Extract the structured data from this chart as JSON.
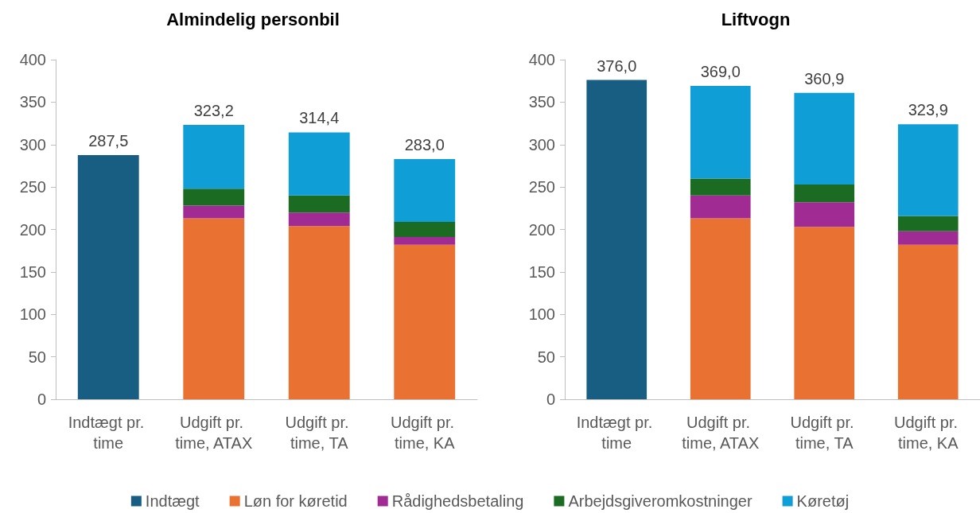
{
  "chart_data": [
    {
      "type": "bar",
      "title": "Almindelig personbil",
      "stacked": true,
      "categories": [
        "Indtægt pr. time",
        "Udgift pr. time, ATAX",
        "Udgift pr. time, TA",
        "Udgift pr. time, KA"
      ],
      "series": [
        {
          "name": "Indtægt",
          "color": "#175e82",
          "values": [
            287.5,
            null,
            null,
            null
          ]
        },
        {
          "name": "Løn for køretid",
          "color": "#e97132",
          "values": [
            null,
            213,
            204,
            182
          ]
        },
        {
          "name": "Rådighedsbetaling",
          "color": "#a02b93",
          "values": [
            null,
            15,
            16,
            9
          ]
        },
        {
          "name": "Arbejdsgiveromkostninger",
          "color": "#1b6b23",
          "values": [
            null,
            20,
            20,
            18
          ]
        },
        {
          "name": "Køretøj",
          "color": "#0f9ed5",
          "values": [
            null,
            75.2,
            74.4,
            74
          ]
        }
      ],
      "totals": [
        "287,5",
        "323,2",
        "314,4",
        "283,0"
      ],
      "ylim": [
        0,
        400
      ],
      "yticks": [
        0,
        50,
        100,
        150,
        200,
        250,
        300,
        350,
        400
      ],
      "grid": false,
      "legend": "bottom"
    },
    {
      "type": "bar",
      "title": "Liftvogn",
      "stacked": true,
      "categories": [
        "Indtægt pr. time",
        "Udgift pr. time, ATAX",
        "Udgift pr. time, TA",
        "Udgift pr. time, KA"
      ],
      "series": [
        {
          "color": "#175e82",
          "values": [
            376,
            null,
            null,
            null
          ]
        },
        {
          "color": "#e97132",
          "values": [
            null,
            213,
            203,
            182
          ]
        },
        {
          "color": "#a02b93",
          "values": [
            null,
            27,
            29,
            16
          ]
        },
        {
          "color": "#1b6b23",
          "values": [
            null,
            20,
            21,
            18
          ]
        },
        {
          "color": "#0f9ed5",
          "values": [
            null,
            109,
            107.9,
            107.9
          ]
        }
      ],
      "totals": [
        "376,0",
        "369,0",
        "360,9",
        "323,9"
      ],
      "ylim": [
        0,
        400
      ],
      "yticks": [
        0,
        50,
        100,
        150,
        200,
        250,
        300,
        350,
        400
      ],
      "grid": false
    }
  ]
}
